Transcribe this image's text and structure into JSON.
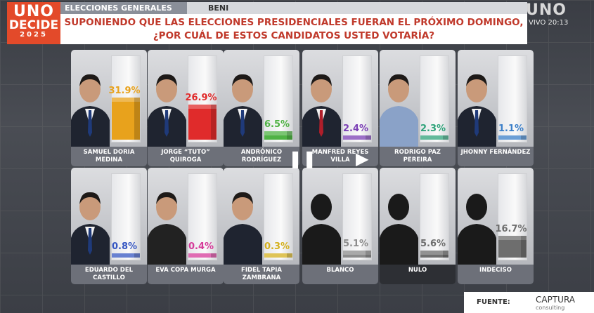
{
  "logo": {
    "line1": "UNO",
    "line2": "DECIDE",
    "line3": "2025"
  },
  "header": {
    "title": "ELECCIONES GENERALES 2025",
    "region": "BENI",
    "question": "SUPONIENDO QUE LAS ELECCIONES PRESIDENCIALES FUERAN EL PRÓXIMO DOMINGO, ¿POR CUÁL DE ESTOS CANDIDATOS USTED VOTARÍA?"
  },
  "channel": {
    "name": "UNO",
    "live": "VIVO 20:13"
  },
  "footer": {
    "source_label": "FUENTE:",
    "source_name": "CAPTURA",
    "source_sub": "consulting"
  },
  "player": {
    "pause_glyph": "❚❚",
    "play_glyph": "▶"
  },
  "chart_data": {
    "type": "bar",
    "ylim": [
      0,
      100
    ],
    "categories": [
      "SAMUEL DORIA MEDINA",
      "JORGE “TUTO” QUIROGA",
      "ANDRÓNICO RODRÍGUEZ",
      "MANFRED REYES VILLA",
      "RODRIGO PAZ PEREIRA",
      "JHONNY FERNÁNDEZ",
      "EDUARDO DEL CASTILLO",
      "EVA COPA MURGA",
      "FIDEL TAPIA ZAMBRANA",
      "BLANCO",
      "NULO",
      "INDECISO"
    ],
    "value_labels": [
      "31.9%",
      "26.9%",
      "6.5%",
      "2.4%",
      "2.3%",
      "1.1%",
      "0.8%",
      "0.4%",
      "0.3%",
      "5.1%",
      "5.6%",
      "16.7%"
    ],
    "values": [
      31.9,
      26.9,
      6.5,
      2.4,
      2.3,
      1.1,
      0.8,
      0.4,
      0.3,
      5.1,
      5.6,
      16.7
    ],
    "colors": [
      "#e8a21c",
      "#e02b2b",
      "#4fb244",
      "#7b3fb5",
      "#2fa37a",
      "#3b7fc9",
      "#3657c2",
      "#d63b9a",
      "#d4b01e",
      "#8c8c8c",
      "#6e6e6e",
      "#6e6e6e"
    ]
  }
}
